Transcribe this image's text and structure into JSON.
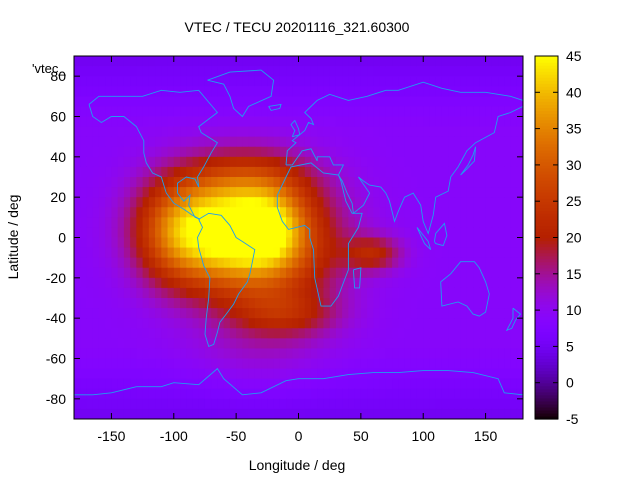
{
  "chart_data": {
    "type": "heatmap",
    "title": "VTEC / TECU 20201116_321.60300",
    "xlabel": "Longitude / deg",
    "ylabel": "Latitude / deg",
    "xlim": [
      -180,
      180
    ],
    "ylim": [
      -90,
      90
    ],
    "x_ticks": [
      -150,
      -100,
      -50,
      0,
      50,
      100,
      150
    ],
    "y_ticks": [
      -80,
      -60,
      -40,
      -20,
      0,
      20,
      40,
      60,
      80
    ],
    "colorbar": {
      "min": -5,
      "max": 45,
      "ticks": [
        -5,
        0,
        5,
        10,
        15,
        20,
        25,
        30,
        35,
        40,
        45
      ]
    },
    "legend_entry": "'vtec_",
    "overlay": "coastlines",
    "grid": false,
    "background_vtec": 9,
    "features": [
      {
        "lon": -65,
        "lat": 5,
        "peak": 24,
        "sx": 38,
        "sy": 18
      },
      {
        "lon": -30,
        "lat": -3,
        "peak": 22,
        "sx": 42,
        "sy": 22
      },
      {
        "lon": -20,
        "lat": 5,
        "peak": 10,
        "sx": 18,
        "sy": 14
      },
      {
        "lon": -100,
        "lat": 2,
        "peak": 10,
        "sx": 22,
        "sy": 18
      },
      {
        "lon": -40,
        "lat": 30,
        "peak": 7,
        "sx": 35,
        "sy": 10
      },
      {
        "lon": 60,
        "lat": -8,
        "peak": 11,
        "sx": 16,
        "sy": 6
      },
      {
        "lon": -10,
        "lat": -38,
        "peak": 9,
        "sx": 30,
        "sy": 8
      },
      {
        "lon": -30,
        "lat": -60,
        "peak": 3,
        "sx": 40,
        "sy": 12
      }
    ]
  }
}
